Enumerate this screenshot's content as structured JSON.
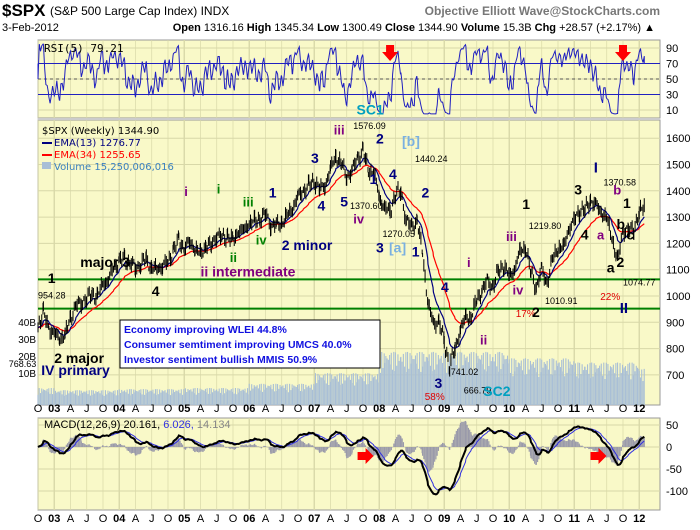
{
  "header": {
    "symbol": "$SPX",
    "name": "(S&P 500 Large Cap Index)",
    "exchange": "INDX",
    "credit": "Objective Elliott Wave@StockCharts.com",
    "date": "3-Feb-2012",
    "open_label": "Open",
    "open": "1316.16",
    "high_label": "High",
    "high": "1345.34",
    "low_label": "Low",
    "low": "1300.49",
    "close_label": "Close",
    "close": "1344.90",
    "volume_label": "Volume",
    "volume": "15.3B",
    "chg_label": "Chg",
    "chg": "+28.57 (+2.17%)"
  },
  "colors": {
    "plot_bg": "#f9f9c8",
    "grid": "#d8d8a8",
    "ema13": "#000080",
    "ema34": "#ff0000",
    "volume": "#a9bfd6",
    "rsi": "#2020c0",
    "macd": "#000000",
    "signal": "#3030e0",
    "hist": "#9a9aaa",
    "support": "#008000",
    "arrow": "#ff0000"
  },
  "chart_data": {
    "type": "line",
    "title": "$SPX (S&P 500 Large Cap Index) INDX",
    "start_month": "2002-10",
    "monthly_close": [
      885,
      936,
      880,
      855,
      841,
      848,
      917,
      964,
      975,
      990,
      1008,
      996,
      1051,
      1058,
      1112,
      1131,
      1145,
      1126,
      1107,
      1121,
      1141,
      1102,
      1104,
      1115,
      1130,
      1174,
      1212,
      1181,
      1204,
      1181,
      1157,
      1192,
      1191,
      1234,
      1220,
      1229,
      1207,
      1249,
      1248,
      1280,
      1281,
      1295,
      1311,
      1270,
      1270,
      1277,
      1304,
      1336,
      1378,
      1401,
      1418,
      1438,
      1407,
      1421,
      1482,
      1531,
      1503,
      1455,
      1474,
      1527,
      1549,
      1481,
      1468,
      1379,
      1331,
      1323,
      1386,
      1400,
      1280,
      1267,
      1283,
      1166,
      969,
      896,
      903,
      826,
      735,
      798,
      873,
      919,
      919,
      987,
      1021,
      1057,
      1036,
      1096,
      1115,
      1074,
      1104,
      1169,
      1187,
      1089,
      1031,
      1102,
      1049,
      1141,
      1183,
      1181,
      1258,
      1286,
      1327,
      1326,
      1364,
      1345,
      1321,
      1292,
      1219,
      1131,
      1253,
      1247,
      1258,
      1312,
      1345
    ],
    "volume_weekly_avg_B_by_year": {
      "2002": 8,
      "2003": 7,
      "2004": 7.5,
      "2005": 8,
      "2006": 10,
      "2007": 15,
      "2008": 25,
      "2009": 25,
      "2010": 22,
      "2011": 20,
      "2012": 17
    },
    "price_panel": {
      "legend": [
        "$SPX (Weekly) 1344.90",
        "EMA(13) 1276.77",
        "EMA(34) 1255.65",
        "Volume 15,250,006,016"
      ],
      "y_ticks": [
        700,
        800,
        900,
        1000,
        1100,
        1200,
        1300,
        1400,
        1500,
        1600
      ],
      "ylim": [
        640,
        1680
      ],
      "volume_ticks": [
        "40B",
        "30B",
        "20B",
        "10B"
      ],
      "support_lines": [
        1063,
        952
      ]
    },
    "rsi_panel": {
      "label": "RSI(5) 79.21",
      "y_ticks": [
        90,
        70,
        50,
        30,
        10
      ],
      "bands": [
        70,
        30
      ]
    },
    "macd_panel": {
      "label": "MACD(12,26,9)",
      "macd": "20.161,",
      "signal": "6.026,",
      "hist": "14.134",
      "y_ticks": [
        50,
        0,
        -50,
        -100
      ],
      "ylim": [
        -135,
        60
      ]
    },
    "x_labels": [
      "O",
      "03",
      "A",
      "J",
      "O",
      "04",
      "A",
      "J",
      "O",
      "05",
      "A",
      "J",
      "O",
      "06",
      "A",
      "J",
      "O",
      "07",
      "A",
      "J",
      "O",
      "08",
      "A",
      "J",
      "O",
      "09",
      "A",
      "J",
      "O",
      "10",
      "A",
      "J",
      "O",
      "11",
      "A",
      "J",
      "O",
      "12"
    ],
    "rsi_arrows": [
      "2008-03",
      "2011-10"
    ],
    "macd_arrows": [
      "2007-09",
      "2011-04"
    ],
    "annotations": [
      {
        "t": "1",
        "d": 2002.9,
        "p": 1050,
        "c": "#000",
        "s": 14
      },
      {
        "t": "954.28",
        "d": 2002.75,
        "p": 990,
        "c": "#000",
        "s": 9
      },
      {
        "t": "768.63",
        "d": 2002.3,
        "p": 730,
        "c": "#000",
        "s": 9
      },
      {
        "t": "major 3",
        "d": 2003.4,
        "p": 1110,
        "c": "#000",
        "s": 14
      },
      {
        "t": "4",
        "d": 2004.5,
        "p": 1000,
        "c": "#000",
        "s": 14
      },
      {
        "t": "i",
        "d": 2005.0,
        "p": 1380,
        "c": "#800080",
        "s": 13
      },
      {
        "t": "i",
        "d": 2005.5,
        "p": 1390,
        "c": "#008000",
        "s": 13
      },
      {
        "t": "iii",
        "d": 2005.9,
        "p": 1340,
        "c": "#008000",
        "s": 13
      },
      {
        "t": "ii",
        "d": 2005.7,
        "p": 1130,
        "c": "#008000",
        "s": 13
      },
      {
        "t": "iv",
        "d": 2006.1,
        "p": 1195,
        "c": "#008000",
        "s": 13
      },
      {
        "t": "ii intermediate",
        "d": 2005.25,
        "p": 1075,
        "c": "#800080",
        "s": 14
      },
      {
        "t": "1",
        "d": 2006.3,
        "p": 1375,
        "c": "#000080",
        "s": 14
      },
      {
        "t": "2 minor",
        "d": 2006.5,
        "p": 1175,
        "c": "#000080",
        "s": 14
      },
      {
        "t": "3",
        "d": 2006.95,
        "p": 1505,
        "c": "#000080",
        "s": 14
      },
      {
        "t": "4",
        "d": 2007.05,
        "p": 1325,
        "c": "#000080",
        "s": 14
      },
      {
        "t": "iii",
        "d": 2007.3,
        "p": 1615,
        "c": "#800080",
        "s": 13
      },
      {
        "t": "1576.09",
        "d": 2007.6,
        "p": 1635,
        "c": "#000",
        "s": 9
      },
      {
        "t": "SC1",
        "d": 2007.65,
        "p": 1690,
        "c": "#00a0c0",
        "s": 14
      },
      {
        "t": "2",
        "d": 2007.95,
        "p": 1580,
        "c": "#000080",
        "s": 14
      },
      {
        "t": "[b]",
        "d": 2008.35,
        "p": 1570,
        "c": "#7ab0e0",
        "s": 14
      },
      {
        "t": "1440.24",
        "d": 2008.55,
        "p": 1510,
        "c": "#000",
        "s": 9
      },
      {
        "t": "5",
        "d": 2007.4,
        "p": 1340,
        "c": "#000080",
        "s": 14
      },
      {
        "t": "1370.60",
        "d": 2007.55,
        "p": 1330,
        "c": "#000",
        "s": 9
      },
      {
        "t": "iv",
        "d": 2007.6,
        "p": 1275,
        "c": "#800080",
        "s": 13
      },
      {
        "t": "1",
        "d": 2007.85,
        "p": 1425,
        "c": "#000080",
        "s": 14
      },
      {
        "t": "4",
        "d": 2008.15,
        "p": 1445,
        "c": "#000080",
        "s": 14
      },
      {
        "t": "2",
        "d": 2008.65,
        "p": 1375,
        "c": "#000080",
        "s": 14
      },
      {
        "t": "1270.05",
        "d": 2008.05,
        "p": 1225,
        "c": "#000",
        "s": 9
      },
      {
        "t": "3",
        "d": 2007.95,
        "p": 1165,
        "c": "#000080",
        "s": 14
      },
      {
        "t": "[a]",
        "d": 2008.15,
        "p": 1165,
        "c": "#7ab0e0",
        "s": 14
      },
      {
        "t": "1",
        "d": 2008.5,
        "p": 1150,
        "c": "#000080",
        "s": 14
      },
      {
        "t": "4",
        "d": 2008.95,
        "p": 1015,
        "c": "#000080",
        "s": 14
      },
      {
        "t": "i",
        "d": 2009.35,
        "p": 1110,
        "c": "#800080",
        "s": 13
      },
      {
        "t": "ii",
        "d": 2009.55,
        "p": 815,
        "c": "#800080",
        "s": 13
      },
      {
        "t": "741.02",
        "d": 2009.1,
        "p": 700,
        "c": "#000",
        "s": 9
      },
      {
        "t": "666.79",
        "d": 2009.3,
        "p": 630,
        "c": "#000",
        "s": 9
      },
      {
        "t": "3",
        "d": 2008.85,
        "p": 650,
        "c": "#000080",
        "s": 14
      },
      {
        "t": "58%",
        "d": 2008.7,
        "p": 605,
        "c": "#e00000",
        "s": 10
      },
      {
        "t": "SC2",
        "d": 2009.6,
        "p": 620,
        "c": "#00a0c0",
        "s": 14
      },
      {
        "t": "1",
        "d": 2010.2,
        "p": 1330,
        "c": "#000",
        "s": 14
      },
      {
        "t": "1219.80",
        "d": 2010.3,
        "p": 1255,
        "c": "#000",
        "s": 9
      },
      {
        "t": "iii",
        "d": 2009.95,
        "p": 1210,
        "c": "#800080",
        "s": 13
      },
      {
        "t": "iv",
        "d": 2010.05,
        "p": 1005,
        "c": "#800080",
        "s": 13
      },
      {
        "t": "1010.91",
        "d": 2010.55,
        "p": 970,
        "c": "#000",
        "s": 9
      },
      {
        "t": "17%",
        "d": 2010.1,
        "p": 920,
        "c": "#e00000",
        "s": 10
      },
      {
        "t": "2",
        "d": 2010.35,
        "p": 920,
        "c": "#000",
        "s": 14
      },
      {
        "t": "3",
        "d": 2011.0,
        "p": 1385,
        "c": "#000",
        "s": 14
      },
      {
        "t": "I",
        "d": 2011.3,
        "p": 1470,
        "c": "#000080",
        "s": 15
      },
      {
        "t": "1370.58",
        "d": 2011.45,
        "p": 1420,
        "c": "#000",
        "s": 9
      },
      {
        "t": "b",
        "d": 2011.6,
        "p": 1385,
        "c": "#800080",
        "s": 13
      },
      {
        "t": "4",
        "d": 2011.1,
        "p": 1215,
        "c": "#000",
        "s": 14
      },
      {
        "t": "a",
        "d": 2011.35,
        "p": 1215,
        "c": "#800080",
        "s": 13
      },
      {
        "t": "1",
        "d": 2011.75,
        "p": 1335,
        "c": "#000",
        "s": 14
      },
      {
        "t": "b",
        "d": 2011.65,
        "p": 1255,
        "c": "#000",
        "s": 14
      },
      {
        "t": "c",
        "d": 2011.8,
        "p": 1215,
        "c": "#000",
        "s": 14
      },
      {
        "t": "a",
        "d": 2011.5,
        "p": 1090,
        "c": "#000",
        "s": 14
      },
      {
        "t": "2",
        "d": 2011.65,
        "p": 1110,
        "c": "#000",
        "s": 14
      },
      {
        "t": "1074.77",
        "d": 2011.75,
        "p": 1040,
        "c": "#000",
        "s": 9
      },
      {
        "t": "22%",
        "d": 2011.4,
        "p": 985,
        "c": "#e00000",
        "s": 10
      },
      {
        "t": "II",
        "d": 2011.7,
        "p": 935,
        "c": "#000080",
        "s": 15
      },
      {
        "t": "2 major",
        "d": 2003.0,
        "p": 745,
        "c": "#000",
        "s": 14
      },
      {
        "t": "IV primary",
        "d": 2002.8,
        "p": 700,
        "c": "#000080",
        "s": 14
      }
    ],
    "notes": [
      "Economy improving WLEI 44.8%",
      "Consumer semtiment improving UMCS 40.0%",
      "Investor sentiment bullish MMIS 50.9%"
    ]
  }
}
